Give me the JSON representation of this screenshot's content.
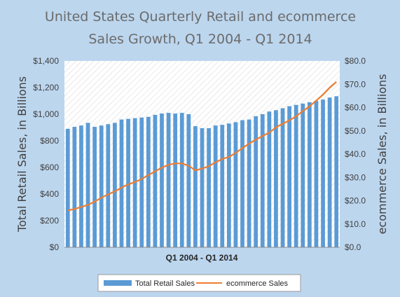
{
  "colors": {
    "background": "#bcd6ee",
    "bars": "#5b9bd5",
    "line": "#ed7d31",
    "plot_hatch": "#d0d0d0"
  },
  "chart_data": {
    "type": "bar",
    "title_lines": [
      "United States Quarterly Retail and ecommerce",
      "Sales Growth, Q1 2004 - Q1 2014"
    ],
    "xlabel": "Q1 2004 - Q1 2014",
    "ylabel_left": "Total Retail Sales, in Billions",
    "ylabel_right": "ecommerce Sales, in Billions",
    "ylim_left": [
      0,
      1400
    ],
    "ylim_right": [
      0,
      80
    ],
    "yticks_left": [
      "$0",
      "$200",
      "$400",
      "$600",
      "$800",
      "$1,000",
      "$1,200",
      "$1,400"
    ],
    "yticks_right": [
      "$0.0",
      "$10.0",
      "$20.0",
      "$30.0",
      "$40.0",
      "$50.0",
      "$60.0",
      "$70.0",
      "$80.0"
    ],
    "legend_position": "bottom",
    "series": [
      {
        "name": "Total Retail Sales",
        "kind": "bar",
        "axis": "left",
        "values": [
          890,
          905,
          915,
          935,
          905,
          915,
          925,
          935,
          960,
          965,
          970,
          975,
          980,
          995,
          1005,
          1010,
          1005,
          1010,
          1000,
          910,
          895,
          895,
          915,
          920,
          930,
          940,
          955,
          960,
          985,
          1000,
          1020,
          1030,
          1045,
          1060,
          1070,
          1080,
          1090,
          1100,
          1110,
          1125,
          1135
        ]
      },
      {
        "name": "ecommerce Sales",
        "kind": "line",
        "axis": "right",
        "values": [
          15.8,
          16.4,
          17.3,
          18.2,
          19.6,
          21.3,
          22.7,
          24.0,
          25.6,
          27.0,
          28.0,
          29.3,
          31.0,
          32.6,
          34.2,
          35.4,
          36.0,
          36.0,
          35.0,
          33.0,
          33.8,
          34.8,
          36.5,
          37.9,
          38.8,
          40.5,
          42.6,
          44.5,
          46.2,
          47.8,
          49.2,
          51.5,
          53.0,
          54.5,
          56.2,
          58.5,
          60.5,
          63.0,
          65.5,
          68.5,
          71.0
        ]
      }
    ]
  }
}
